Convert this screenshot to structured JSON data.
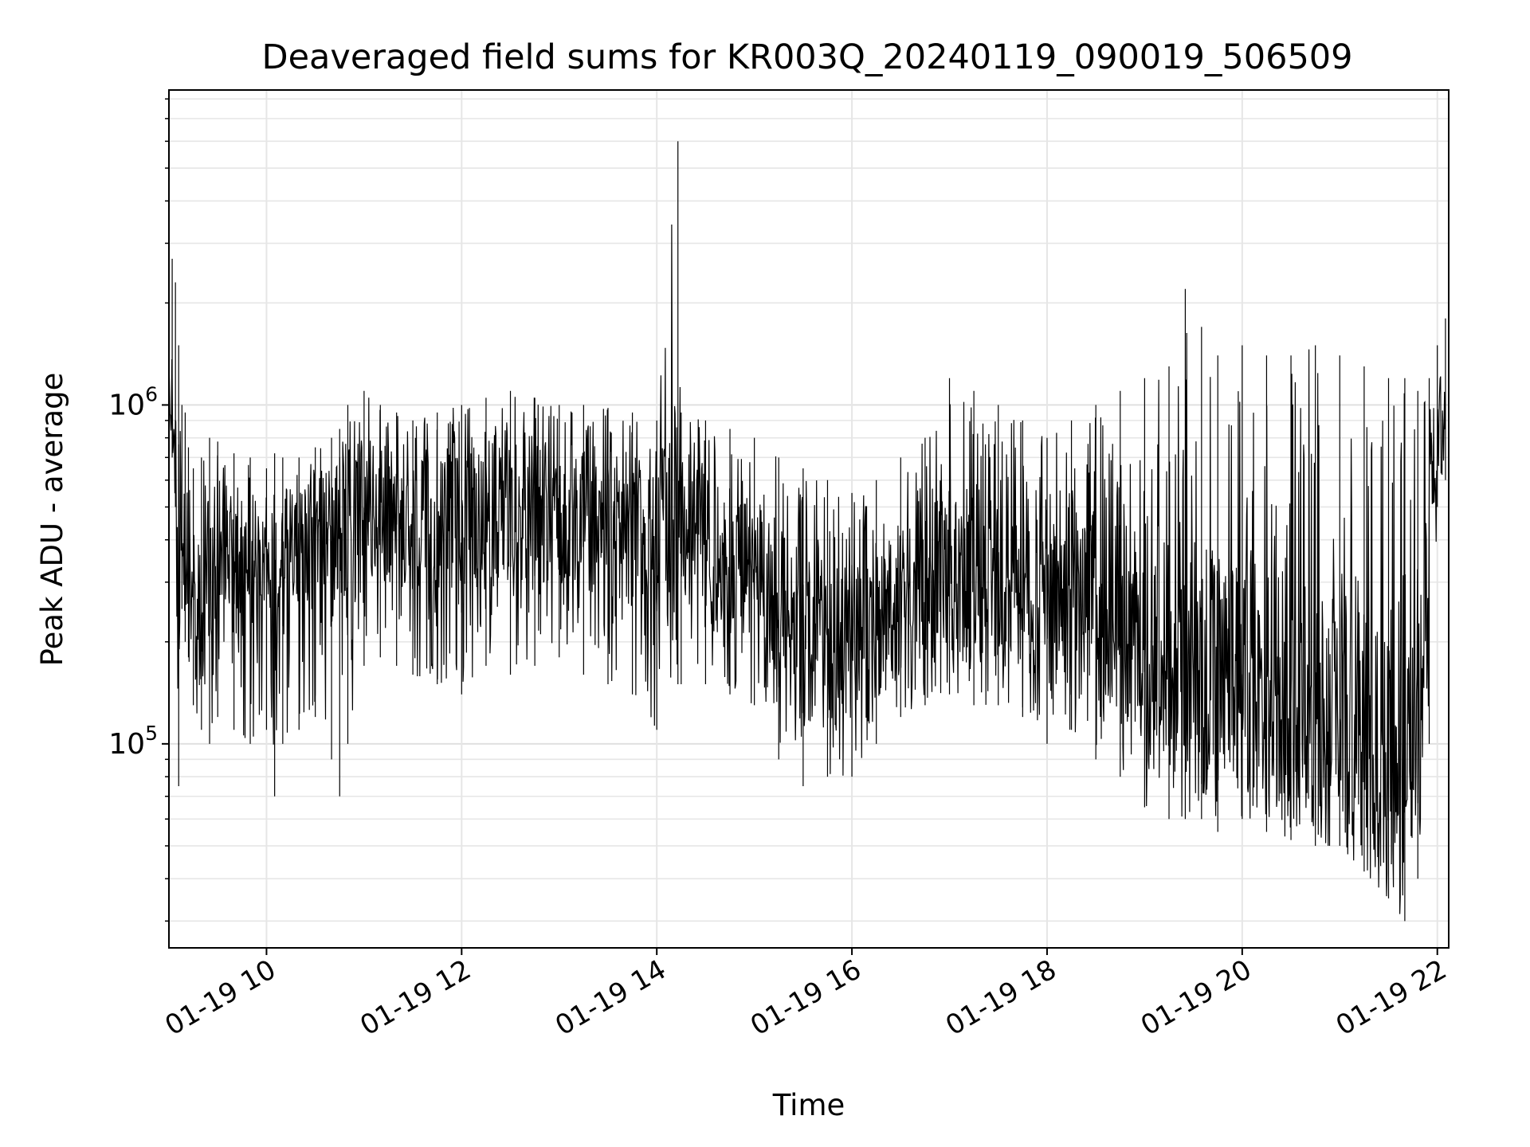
{
  "chart_data": {
    "type": "line",
    "title": "Deaveraged field sums for KR003Q_20240119_090019_506509",
    "xlabel": "Time",
    "ylabel": "Peak ADU - average",
    "yscale": "log",
    "xlim": [
      "2024-01-19 09:00",
      "2024-01-19 22:07"
    ],
    "ylim": [
      25000,
      8500000
    ],
    "grid": true,
    "x_ticks": [
      {
        "label": "01-19 10",
        "value": "2024-01-19 10:00"
      },
      {
        "label": "01-19 12",
        "value": "2024-01-19 12:00"
      },
      {
        "label": "01-19 14",
        "value": "2024-01-19 14:00"
      },
      {
        "label": "01-19 16",
        "value": "2024-01-19 16:00"
      },
      {
        "label": "01-19 18",
        "value": "2024-01-19 18:00"
      },
      {
        "label": "01-19 20",
        "value": "2024-01-19 20:00"
      },
      {
        "label": "01-19 22",
        "value": "2024-01-19 22:00"
      }
    ],
    "y_ticks": [
      {
        "base": "10",
        "exp": "5",
        "value": 100000
      },
      {
        "base": "10",
        "exp": "6",
        "value": 1000000
      }
    ],
    "series": [
      {
        "color": "#000000",
        "x": [
          "2024-01-19 09:00",
          "2024-01-19 09:02",
          "2024-01-19 09:04",
          "2024-01-19 09:06",
          "2024-01-19 09:08",
          "2024-01-19 09:10",
          "2024-01-19 09:12",
          "2024-01-19 09:15",
          "2024-01-19 09:20",
          "2024-01-19 09:25",
          "2024-01-19 09:30",
          "2024-01-19 09:40",
          "2024-01-19 09:50",
          "2024-01-19 10:00",
          "2024-01-19 10:05",
          "2024-01-19 10:10",
          "2024-01-19 10:20",
          "2024-01-19 10:30",
          "2024-01-19 10:40",
          "2024-01-19 10:45",
          "2024-01-19 10:50",
          "2024-01-19 11:00",
          "2024-01-19 11:10",
          "2024-01-19 11:20",
          "2024-01-19 11:30",
          "2024-01-19 11:45",
          "2024-01-19 12:00",
          "2024-01-19 12:15",
          "2024-01-19 12:30",
          "2024-01-19 12:45",
          "2024-01-19 13:00",
          "2024-01-19 13:15",
          "2024-01-19 13:30",
          "2024-01-19 13:45",
          "2024-01-19 14:00",
          "2024-01-19 14:13",
          "2024-01-19 14:15",
          "2024-01-19 14:30",
          "2024-01-19 14:45",
          "2024-01-19 15:00",
          "2024-01-19 15:15",
          "2024-01-19 15:30",
          "2024-01-19 15:45",
          "2024-01-19 16:00",
          "2024-01-19 16:15",
          "2024-01-19 16:30",
          "2024-01-19 16:45",
          "2024-01-19 17:00",
          "2024-01-19 17:15",
          "2024-01-19 17:30",
          "2024-01-19 17:45",
          "2024-01-19 18:00",
          "2024-01-19 18:15",
          "2024-01-19 18:30",
          "2024-01-19 18:45",
          "2024-01-19 19:00",
          "2024-01-19 19:15",
          "2024-01-19 19:25",
          "2024-01-19 19:35",
          "2024-01-19 19:45",
          "2024-01-19 20:00",
          "2024-01-19 20:15",
          "2024-01-19 20:30",
          "2024-01-19 20:45",
          "2024-01-19 21:00",
          "2024-01-19 21:15",
          "2024-01-19 21:30",
          "2024-01-19 21:40",
          "2024-01-19 21:48",
          "2024-01-19 21:55",
          "2024-01-19 22:00",
          "2024-01-19 22:05"
        ],
        "y_high": [
          1800000,
          2700000,
          2300000,
          1500000,
          1000000,
          950000,
          750000,
          650000,
          700000,
          800000,
          780000,
          720000,
          700000,
          650000,
          720000,
          700000,
          700000,
          750000,
          800000,
          850000,
          1000000,
          1100000,
          1000000,
          950000,
          900000,
          950000,
          1000000,
          1050000,
          1100000,
          1050000,
          1000000,
          1000000,
          980000,
          950000,
          900000,
          6000000,
          950000,
          900000,
          850000,
          800000,
          700000,
          650000,
          600000,
          550000,
          600000,
          700000,
          800000,
          1200000,
          1100000,
          1000000,
          900000,
          800000,
          900000,
          1000000,
          1100000,
          1200000,
          1300000,
          2200000,
          1700000,
          1400000,
          1500000,
          1400000,
          1400000,
          1500000,
          1400000,
          1300000,
          1200000,
          1200000,
          1100000,
          1200000,
          1500000,
          1800000
        ],
        "y_low": [
          900000,
          700000,
          500000,
          75000,
          250000,
          200000,
          180000,
          130000,
          110000,
          100000,
          120000,
          110000,
          100000,
          110000,
          70000,
          100000,
          110000,
          120000,
          90000,
          70000,
          100000,
          170000,
          180000,
          170000,
          160000,
          150000,
          140000,
          170000,
          160000,
          170000,
          180000,
          160000,
          150000,
          140000,
          110000,
          150000,
          150000,
          150000,
          140000,
          130000,
          90000,
          75000,
          80000,
          80000,
          100000,
          120000,
          130000,
          140000,
          130000,
          130000,
          120000,
          100000,
          110000,
          90000,
          80000,
          65000,
          60000,
          60000,
          60000,
          55000,
          60000,
          55000,
          52000,
          50000,
          50000,
          42000,
          35000,
          30000,
          40000,
          100000,
          500000,
          600000
        ],
        "y_typical": [
          1200000,
          1100000,
          800000,
          300000,
          350000,
          330000,
          300000,
          280000,
          300000,
          320000,
          330000,
          340000,
          330000,
          340000,
          330000,
          340000,
          360000,
          380000,
          400000,
          420000,
          450000,
          480000,
          480000,
          470000,
          460000,
          470000,
          480000,
          480000,
          490000,
          500000,
          480000,
          460000,
          450000,
          440000,
          430000,
          420000,
          400000,
          380000,
          360000,
          330000,
          250000,
          200000,
          190000,
          200000,
          220000,
          260000,
          290000,
          330000,
          320000,
          300000,
          280000,
          250000,
          240000,
          230000,
          220000,
          200000,
          190000,
          180000,
          170000,
          160000,
          150000,
          140000,
          130000,
          120000,
          110000,
          95000,
          80000,
          70000,
          90000,
          400000,
          800000,
          1000000
        ]
      }
    ]
  }
}
